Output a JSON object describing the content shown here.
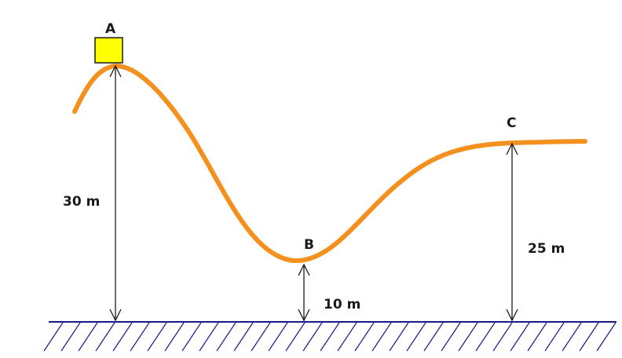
{
  "diagram": {
    "points": [
      {
        "id": "A",
        "label": "A"
      },
      {
        "id": "B",
        "label": "B"
      },
      {
        "id": "C",
        "label": "C"
      }
    ],
    "heights": {
      "A": "30 m",
      "B": "10 m",
      "C": "25 m"
    },
    "colors": {
      "track": "#f4901e",
      "block": "#ffff00",
      "ground": "#1a1a8c",
      "text": "#1a1a1a"
    }
  }
}
